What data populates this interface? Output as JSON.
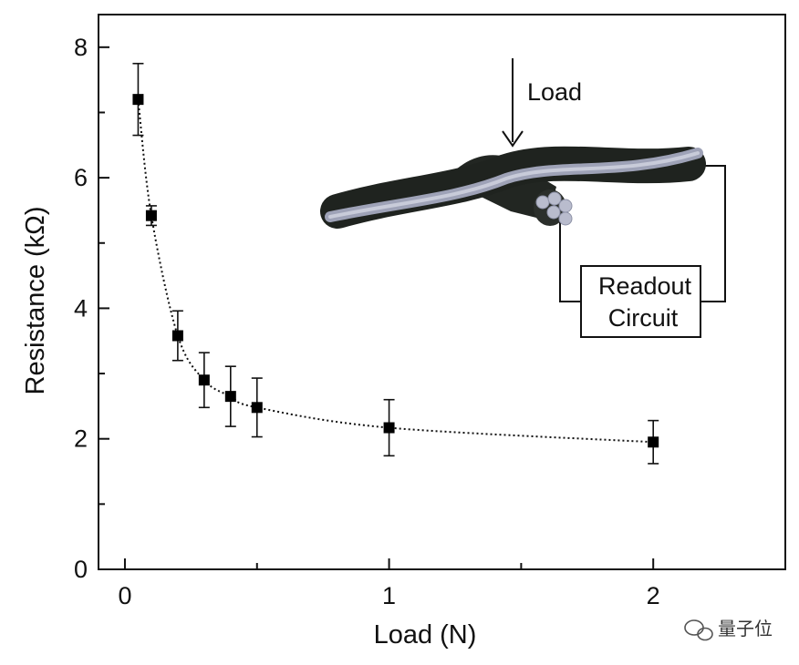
{
  "chart_data": {
    "type": "scatter",
    "xlabel": "Load (N)",
    "ylabel": "Resistance (kΩ)",
    "xlim": [
      -0.1,
      2.5
    ],
    "ylim": [
      0,
      8.5
    ],
    "x_ticks": [
      0,
      1,
      2
    ],
    "x_tick_labels": [
      "0",
      "1",
      "2"
    ],
    "y_ticks": [
      0,
      2,
      4,
      6,
      8
    ],
    "y_tick_labels": [
      "0",
      "2",
      "4",
      "6",
      "8"
    ],
    "grid": false,
    "series": [
      {
        "marker": "square",
        "line_style": "dotted",
        "color": "#000000",
        "x": [
          0.05,
          0.1,
          0.2,
          0.3,
          0.4,
          0.5,
          1.0,
          2.0
        ],
        "y": [
          7.2,
          5.42,
          3.58,
          2.9,
          2.65,
          2.48,
          2.17,
          1.95
        ],
        "error": [
          0.55,
          0.15,
          0.38,
          0.42,
          0.46,
          0.45,
          0.43,
          0.33
        ]
      }
    ]
  },
  "inset": {
    "load_label": "Load",
    "readout_line1": "Readout",
    "readout_line2": "Circuit"
  },
  "watermark": {
    "text": "量子位"
  }
}
